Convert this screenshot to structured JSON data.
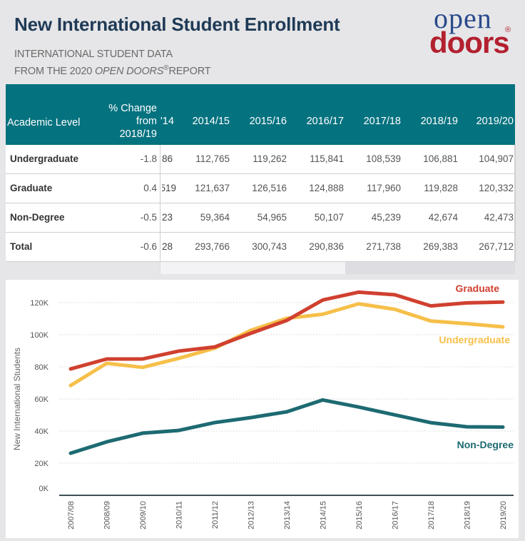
{
  "header": {
    "title": "New International Student Enrollment",
    "subtitle_line1": "INTERNATIONAL STUDENT DATA",
    "subtitle_line2_prefix": "FROM THE 2020 ",
    "subtitle_line2_italic": "OPEN DOORS",
    "subtitle_line2_reg": "®",
    "subtitle_line2_suffix": "REPORT"
  },
  "logo": {
    "top": "open",
    "bottom": "doors",
    "reg": "®",
    "color_top": "#2a4a8c",
    "color_bottom": "#b3202f"
  },
  "table": {
    "header_bg": "#05727f",
    "columns": {
      "level": "Academic Level",
      "change_line1": "% Change",
      "change_line2": "from",
      "change_line3": "2018/19",
      "clipped": "'14",
      "years": [
        "2014/15",
        "2015/16",
        "2016/17",
        "2017/18",
        "2018/19",
        "2019/20"
      ]
    },
    "rows": [
      {
        "level": "Undergraduate",
        "change": "-1.8",
        "clipped": "86",
        "values": [
          "112,765",
          "119,262",
          "115,841",
          "108,539",
          "106,881",
          "104,907"
        ]
      },
      {
        "level": "Graduate",
        "change": "0.4",
        "clipped": "519",
        "values": [
          "121,637",
          "126,516",
          "124,888",
          "117,960",
          "119,828",
          "120,332"
        ]
      },
      {
        "level": "Non-Degree",
        "change": "-0.5",
        "clipped": "23",
        "values": [
          "59,364",
          "54,965",
          "50,107",
          "45,239",
          "42,674",
          "42,473"
        ]
      },
      {
        "level": "Total",
        "change": "-0.6",
        "clipped": "28",
        "values": [
          "293,766",
          "300,743",
          "290,836",
          "271,738",
          "269,383",
          "267,712"
        ]
      }
    ]
  },
  "chart_data": {
    "type": "line",
    "title": "",
    "xlabel": "",
    "ylabel": "New International Students",
    "x": [
      "2007/08",
      "2008/09",
      "2009/10",
      "2010/11",
      "2011/12",
      "2012/13",
      "2013/14",
      "2014/15",
      "2015/16",
      "2016/17",
      "2017/18",
      "2018/19",
      "2019/20"
    ],
    "ylim": [
      0,
      120000
    ],
    "yticks": [
      0,
      20000,
      40000,
      60000,
      80000,
      100000,
      120000
    ],
    "ytick_labels": [
      "0K",
      "20K",
      "40K",
      "60K",
      "80K",
      "100K",
      "120K"
    ],
    "grid": true,
    "legend": "inline labels at right end of lines",
    "series": [
      {
        "name": "Graduate",
        "color": "#d0402f",
        "values": [
          78700,
          84900,
          84900,
          89800,
          92400,
          100900,
          108900,
          121637,
          126516,
          124888,
          117960,
          119828,
          120332
        ]
      },
      {
        "name": "Undergraduate",
        "color": "#f6bf49",
        "values": [
          68400,
          82200,
          79700,
          85300,
          91600,
          102700,
          110200,
          112765,
          119262,
          115841,
          108539,
          106881,
          104907
        ]
      },
      {
        "name": "Non-Degree",
        "color": "#1d6a72",
        "values": [
          26200,
          33300,
          38700,
          40400,
          45300,
          48400,
          52000,
          59364,
          54965,
          50107,
          45239,
          42674,
          42473
        ]
      }
    ]
  }
}
